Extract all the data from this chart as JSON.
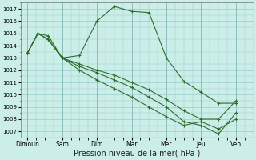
{
  "background_color": "#cceee8",
  "grid_color": "#99cccc",
  "line_color": "#2d6e2d",
  "marker": "+",
  "xlabel": "Pression niveau de la mer( hPa )",
  "xlabel_fontsize": 7,
  "ylim": [
    1006.5,
    1017.5
  ],
  "yticks": [
    1007,
    1008,
    1009,
    1010,
    1011,
    1012,
    1013,
    1014,
    1015,
    1016,
    1017
  ],
  "xtick_labels": [
    "Dimoun",
    "Sam",
    "Dim",
    "Mar",
    "Mer",
    "Jeu",
    "Ven"
  ],
  "xtick_positions": [
    0,
    1,
    2,
    3,
    4,
    5,
    6
  ],
  "xlim": [
    -0.2,
    6.5
  ],
  "series": [
    {
      "x": [
        0.0,
        0.3,
        0.6,
        1.0,
        1.5,
        2.0,
        2.5,
        3.0,
        3.5,
        4.0,
        4.5,
        5.0,
        5.5,
        6.0
      ],
      "y": [
        1013.4,
        1015.0,
        1014.8,
        1013.0,
        1013.2,
        1016.0,
        1017.2,
        1016.8,
        1016.7,
        1013.0,
        1011.1,
        1010.2,
        1009.3,
        1009.3
      ]
    },
    {
      "x": [
        0.0,
        0.3,
        0.6,
        1.0,
        1.5,
        2.0,
        2.5,
        3.0,
        3.5,
        4.0,
        4.5,
        5.0,
        5.5,
        6.0
      ],
      "y": [
        1013.4,
        1015.0,
        1014.5,
        1013.0,
        1012.5,
        1012.0,
        1011.6,
        1011.0,
        1010.4,
        1009.6,
        1008.7,
        1008.0,
        1008.0,
        1009.5
      ]
    },
    {
      "x": [
        0.0,
        0.3,
        0.6,
        1.0,
        1.5,
        2.0,
        2.5,
        3.0,
        3.5,
        4.0,
        4.5,
        5.0,
        5.5,
        6.0
      ],
      "y": [
        1013.4,
        1015.0,
        1014.5,
        1013.0,
        1012.3,
        1011.8,
        1011.2,
        1010.6,
        1009.8,
        1009.0,
        1007.8,
        1007.5,
        1006.8,
        1008.5
      ]
    },
    {
      "x": [
        0.0,
        0.3,
        0.6,
        1.0,
        1.5,
        2.0,
        2.5,
        3.0,
        3.5,
        4.0,
        4.5,
        5.0,
        5.5,
        6.0
      ],
      "y": [
        1013.4,
        1015.0,
        1014.5,
        1013.0,
        1012.0,
        1011.2,
        1010.5,
        1009.8,
        1009.0,
        1008.2,
        1007.5,
        1007.8,
        1007.2,
        1008.0
      ]
    }
  ]
}
